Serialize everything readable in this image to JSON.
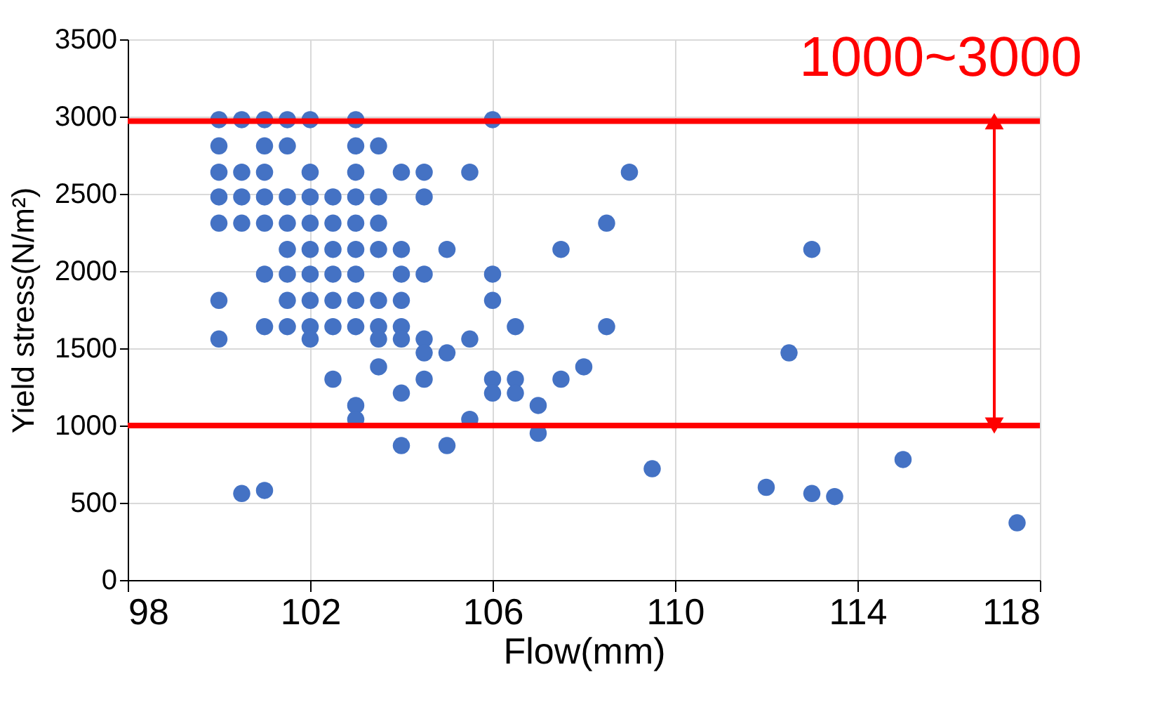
{
  "chart_data": {
    "type": "scatter",
    "xlabel": "Flow(mm)",
    "ylabel": "Yield stress(N/m²)",
    "xlim": [
      98,
      118
    ],
    "xticks": [
      98,
      102,
      106,
      110,
      114,
      118
    ],
    "ylim": [
      0,
      3500
    ],
    "yticks": [
      0,
      500,
      1000,
      1500,
      2000,
      2500,
      3000,
      3500
    ],
    "grid": true,
    "marker": "circle",
    "series": [
      {
        "color": "#4472c4",
        "x": [
          100,
          100.5,
          101,
          101.5,
          102,
          103,
          100,
          101,
          101.5,
          103,
          103.5,
          100,
          100.5,
          101,
          102,
          103,
          104,
          104.5,
          100,
          100.5,
          101,
          101.5,
          102,
          102.5,
          103,
          103.5,
          104.5,
          100,
          100.5,
          101,
          101.5,
          102,
          102.5,
          103,
          103.5,
          101.5,
          102,
          102.5,
          103,
          103.5,
          104,
          101,
          101.5,
          102,
          102.5,
          103,
          104,
          104.5,
          100,
          101.5,
          102,
          102.5,
          103,
          103.5,
          104,
          101,
          101.5,
          102,
          102.5,
          103,
          103.5,
          104,
          100,
          102,
          103.5,
          104,
          104.5,
          104.5,
          103.5,
          102.5,
          104.5,
          104,
          103,
          103,
          104,
          106,
          105.5,
          109,
          108.5,
          105,
          107.5,
          106,
          106,
          106.5,
          108.5,
          105.5,
          105,
          108,
          106,
          106.5,
          107.5,
          106,
          106.5,
          107,
          105.5,
          107,
          105,
          109.5,
          100.5,
          101,
          112,
          112.5,
          113,
          113.5,
          115,
          117.5,
          113
        ],
        "values": [
          2980,
          2980,
          2980,
          2980,
          2980,
          2980,
          2810,
          2810,
          2810,
          2810,
          2810,
          2640,
          2640,
          2640,
          2640,
          2640,
          2640,
          2640,
          2480,
          2480,
          2480,
          2480,
          2480,
          2480,
          2480,
          2480,
          2480,
          2310,
          2310,
          2310,
          2310,
          2310,
          2310,
          2310,
          2310,
          2140,
          2140,
          2140,
          2140,
          2140,
          2140,
          1980,
          1980,
          1980,
          1980,
          1980,
          1980,
          1980,
          1810,
          1810,
          1810,
          1810,
          1810,
          1810,
          1810,
          1640,
          1640,
          1640,
          1640,
          1640,
          1640,
          1640,
          1560,
          1560,
          1560,
          1560,
          1560,
          1470,
          1380,
          1300,
          1300,
          1210,
          1130,
          1040,
          870,
          2980,
          2640,
          2640,
          2310,
          2140,
          2140,
          1980,
          1810,
          1640,
          1640,
          1560,
          1470,
          1380,
          1300,
          1300,
          1300,
          1210,
          1210,
          1130,
          1040,
          950,
          870,
          720,
          560,
          580,
          600,
          1470,
          560,
          540,
          780,
          370,
          2140
        ]
      }
    ],
    "ref_lines": [
      {
        "axis": "y",
        "value": 1000,
        "color": "#ff0000"
      },
      {
        "axis": "y",
        "value": 2970,
        "color": "#ff0000"
      }
    ],
    "annotations": [
      {
        "text": "1000~3000",
        "x": 117,
        "y": 2970
      }
    ]
  }
}
